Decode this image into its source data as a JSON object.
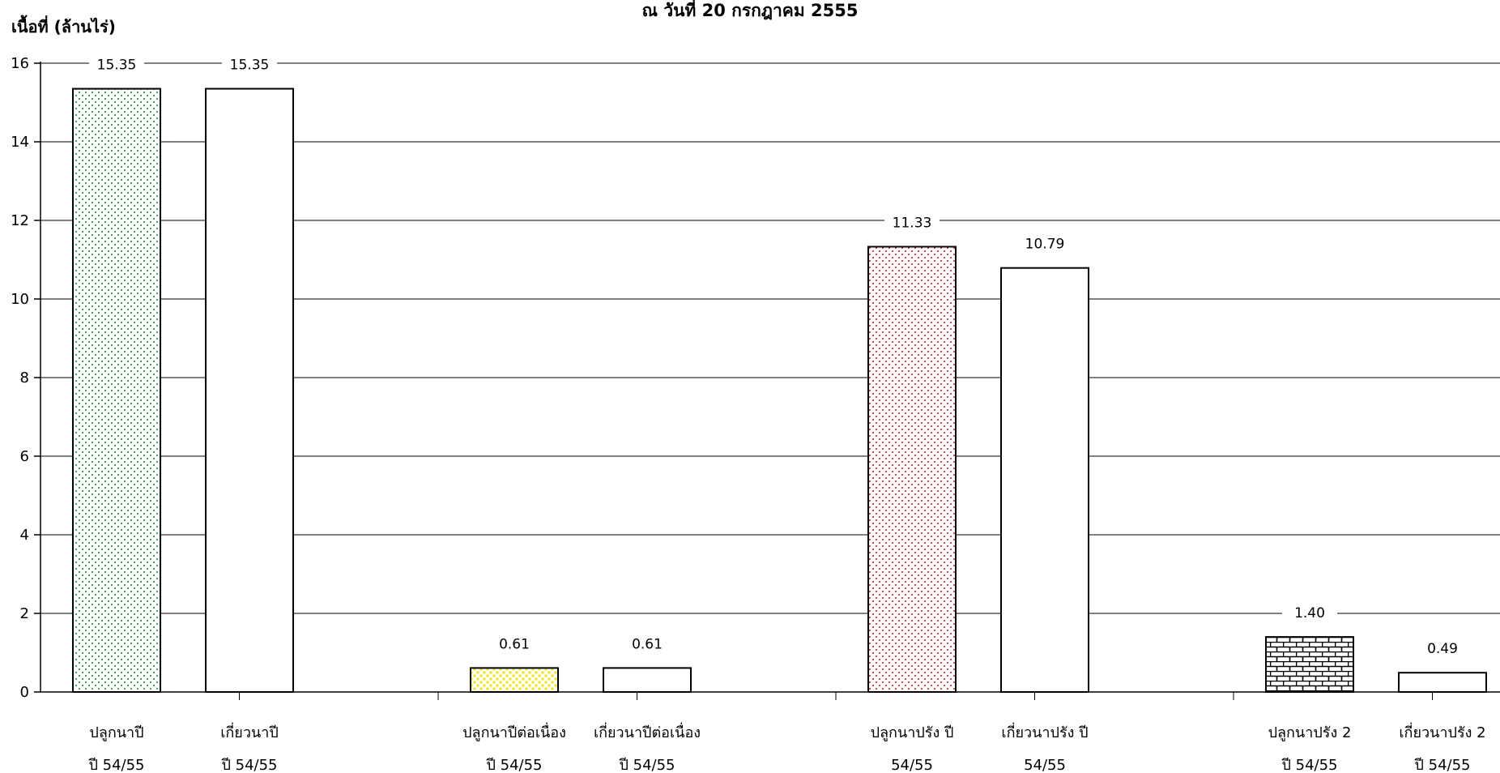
{
  "chart_data": {
    "type": "bar",
    "title": "ณ วันที่ 20 กรกฎาคม 2555",
    "ylabel": "เนื้อที่ (ล้านไร่)",
    "xlabel": "",
    "ylim": [
      0,
      16
    ],
    "yticks": [
      "0",
      "2",
      "4",
      "6",
      "8",
      "10",
      "12",
      "14",
      "16"
    ],
    "grid": true,
    "categories": [
      [
        "ปลูกนาปี",
        "ปี 54/55"
      ],
      [
        "เกี่ยวนาปี",
        "ปี 54/55"
      ],
      [
        "ปลูกนาปีต่อเนื่อง",
        "ปี 54/55"
      ],
      [
        "เกี่ยวนาปีต่อเนื่อง",
        "ปี 54/55"
      ],
      [
        "ปลูกนาปรัง ปี",
        "54/55"
      ],
      [
        "เกี่ยวนาปรัง ปี",
        "54/55"
      ],
      [
        "ปลูกนาปรัง 2",
        "ปี 54/55"
      ],
      [
        "เกี่ยวนาปรัง 2",
        "ปี 54/55"
      ]
    ],
    "values": [
      15.35,
      15.35,
      0.61,
      0.61,
      11.33,
      10.79,
      1.4,
      0.49
    ],
    "value_labels": [
      "15.35",
      "15.35",
      "0.61",
      "0.61",
      "11.33",
      "10.79",
      "1.40",
      "0.49"
    ],
    "groups": [
      [
        0,
        1
      ],
      [
        2,
        3
      ],
      [
        4,
        5
      ],
      [
        6,
        7
      ]
    ],
    "bar_fills": [
      "dots-green",
      "white",
      "dots-yellow",
      "white",
      "dots-red",
      "white",
      "brick-black",
      "white"
    ]
  },
  "colors": {
    "grid": "#000000",
    "bar_outline": "#000000",
    "dots_green": "#2e9e3e",
    "dots_yellow": "#f2e600",
    "dots_red": "#e03030",
    "brick": "#000000"
  }
}
